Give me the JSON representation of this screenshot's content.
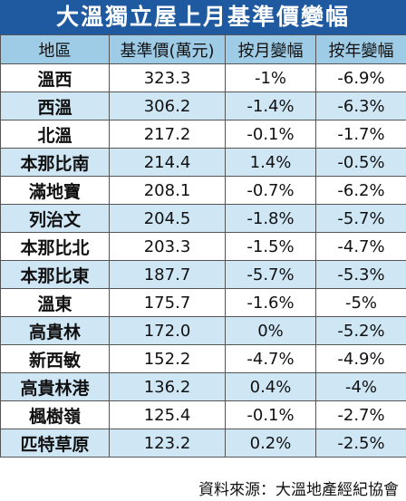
{
  "title": "大溫獨立屋上月基準價變幅",
  "columns": [
    "地區",
    "基準價(萬元)",
    "按月變幅",
    "按年變幅"
  ],
  "rows": [
    {
      "area": "溫西",
      "price": "323.3",
      "mom": "-1%",
      "yoy": "-6.9%"
    },
    {
      "area": "西溫",
      "price": "306.2",
      "mom": "-1.4%",
      "yoy": "-6.3%"
    },
    {
      "area": "北溫",
      "price": "217.2",
      "mom": "-0.1%",
      "yoy": "-1.7%"
    },
    {
      "area": "本那比南",
      "price": "214.4",
      "mom": "1.4%",
      "yoy": "-0.5%"
    },
    {
      "area": "滿地寶",
      "price": "208.1",
      "mom": "-0.7%",
      "yoy": "-6.2%"
    },
    {
      "area": "列治文",
      "price": "204.5",
      "mom": "-1.8%",
      "yoy": "-5.7%"
    },
    {
      "area": "本那比北",
      "price": "203.3",
      "mom": "-1.5%",
      "yoy": "-4.7%"
    },
    {
      "area": "本那比東",
      "price": "187.7",
      "mom": "-5.7%",
      "yoy": "-5.3%"
    },
    {
      "area": "溫東",
      "price": "175.7",
      "mom": "-1.6%",
      "yoy": "-5%"
    },
    {
      "area": "高貴林",
      "price": "172.0",
      "mom": "0%",
      "yoy": "-5.2%"
    },
    {
      "area": "新西敏",
      "price": "152.2",
      "mom": "-4.7%",
      "yoy": "-4.9%"
    },
    {
      "area": "高貴林港",
      "price": "136.2",
      "mom": "0.4%",
      "yoy": "-4%"
    },
    {
      "area": "楓樹嶺",
      "price": "125.4",
      "mom": "-0.1%",
      "yoy": "-2.7%"
    },
    {
      "area": "匹特草原",
      "price": "123.2",
      "mom": "0.2%",
      "yoy": "-2.5%"
    }
  ],
  "source": "資料來源：大溫地產經紀協會",
  "colors": {
    "title_bg": "#1f5aa0",
    "header_bg": "#9ecbe6",
    "row_alt_bg": "#cfe6f5",
    "row_base_bg": "#ffffff"
  }
}
